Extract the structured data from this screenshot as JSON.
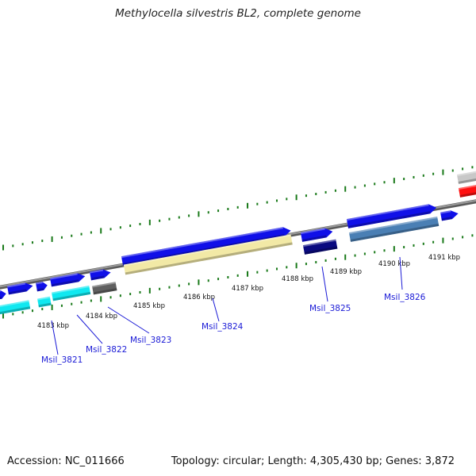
{
  "title": "Methylocella silvestris BL2, complete genome",
  "footer": {
    "accession": "Accession: NC_011666",
    "summary": "Topology: circular; Length: 4,305,430 bp; Genes: 3,872"
  },
  "colors": {
    "cds_blue": "#1010e8",
    "cds_dark_navy": "#0a0a80",
    "cds_cyan": "#10e8f0",
    "cds_khaki": "#f2e9a6",
    "cds_steel": "#4a7fb4",
    "cds_gray": "#606060",
    "cds_light_gray": "#c8c8c8",
    "cds_red": "#ff1010",
    "backbone": "#8a8a8a",
    "ticks": "#1a7a1a",
    "gene_label": "#1a1ad6"
  },
  "scale": {
    "tick_labels": [
      "4183 kbp",
      "4184 kbp",
      "4185 kbp",
      "4186 kbp",
      "4187 kbp",
      "4188 kbp",
      "4189 kbp",
      "4190 kbp",
      "4191 kbp"
    ]
  },
  "genes": [
    {
      "label": "Msil_3821"
    },
    {
      "label": "Msil_3822"
    },
    {
      "label": "Msil_3823"
    },
    {
      "label": "Msil_3824"
    },
    {
      "label": "Msil_3825"
    },
    {
      "label": "Msil_3826"
    }
  ]
}
